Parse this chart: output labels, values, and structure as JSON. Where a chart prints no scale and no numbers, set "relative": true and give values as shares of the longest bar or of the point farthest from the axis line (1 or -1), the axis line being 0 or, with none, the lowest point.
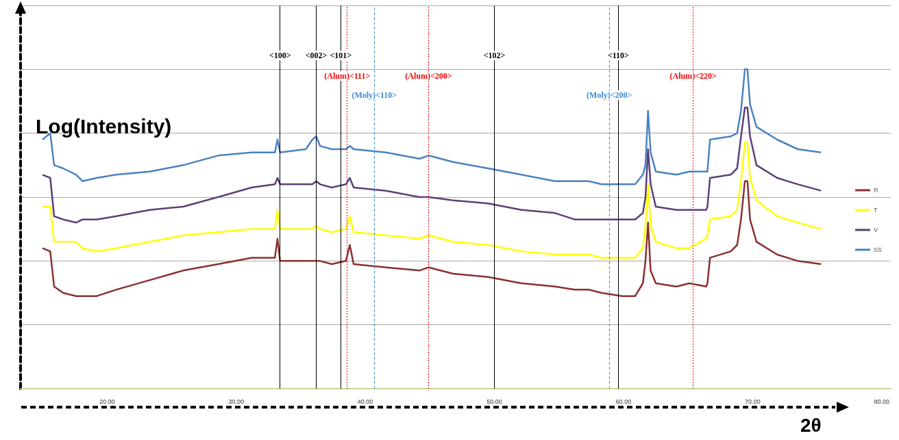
{
  "chart_data": {
    "type": "line",
    "xlabel": "2θ",
    "ylabel": "Log(Intensity)",
    "relative": true,
    "grid": "y",
    "legend": "right",
    "marker": "none",
    "xlim": [
      13.3,
      80.7
    ],
    "xticks": [
      {
        "value": 20,
        "label": "20.00"
      },
      {
        "value": 30,
        "label": "30.00"
      },
      {
        "value": 40,
        "label": "40.00"
      },
      {
        "value": 50,
        "label": "50.00"
      },
      {
        "value": 60,
        "label": "60.00"
      },
      {
        "value": 70,
        "label": "70.00"
      },
      {
        "value": 80,
        "label": "80.00"
      }
    ],
    "x": [
      15.0,
      15.6,
      15.9,
      16.6,
      17.6,
      18.1,
      19.2,
      20.7,
      23.3,
      25.9,
      28.6,
      31.2,
      33.0,
      33.2,
      33.4,
      35.4,
      35.9,
      36.2,
      36.5,
      37.4,
      38.5,
      38.8,
      39.1,
      41.6,
      44.2,
      44.9,
      46.8,
      49.5,
      52.1,
      54.7,
      56.2,
      57.3,
      58.3,
      59.9,
      60.9,
      61.5,
      61.7,
      61.9,
      62.1,
      62.5,
      64.1,
      65.1,
      66.4,
      66.5,
      66.7,
      68.3,
      68.8,
      69.1,
      69.4,
      69.6,
      69.8,
      70.3,
      71.9,
      73.5,
      75.3
    ],
    "annotations": [
      {
        "text": "<100>",
        "x": 33.4
      },
      {
        "text": "<002>",
        "x": 36.2
      },
      {
        "text": "<101>",
        "x": 38.1
      },
      {
        "text": "<102>",
        "x": 50.0
      },
      {
        "text": "<110>",
        "x": 59.6
      }
    ],
    "series": [
      {
        "name": "R",
        "color": "#8b3030",
        "values": [
          0.44,
          0.43,
          0.32,
          0.3,
          0.29,
          0.29,
          0.29,
          0.31,
          0.34,
          0.37,
          0.39,
          0.41,
          0.41,
          0.47,
          0.4,
          0.4,
          0.4,
          0.4,
          0.4,
          0.39,
          0.4,
          0.45,
          0.39,
          0.38,
          0.37,
          0.38,
          0.36,
          0.35,
          0.33,
          0.32,
          0.31,
          0.31,
          0.3,
          0.29,
          0.29,
          0.33,
          0.4,
          0.52,
          0.37,
          0.33,
          0.32,
          0.33,
          0.32,
          0.33,
          0.41,
          0.43,
          0.45,
          0.53,
          0.65,
          0.65,
          0.53,
          0.46,
          0.42,
          0.4,
          0.39
        ]
      },
      {
        "name": "T",
        "color": "#ffff00",
        "values": [
          0.57,
          0.57,
          0.46,
          0.46,
          0.46,
          0.44,
          0.43,
          0.44,
          0.46,
          0.48,
          0.49,
          0.5,
          0.5,
          0.56,
          0.5,
          0.5,
          0.5,
          0.51,
          0.5,
          0.49,
          0.5,
          0.54,
          0.49,
          0.48,
          0.47,
          0.48,
          0.46,
          0.45,
          0.43,
          0.42,
          0.42,
          0.42,
          0.41,
          0.41,
          0.41,
          0.44,
          0.51,
          0.64,
          0.51,
          0.46,
          0.44,
          0.44,
          0.47,
          0.48,
          0.53,
          0.54,
          0.56,
          0.65,
          0.77,
          0.77,
          0.66,
          0.59,
          0.54,
          0.52,
          0.5
        ]
      },
      {
        "name": "V",
        "color": "#5a4078",
        "values": [
          0.67,
          0.66,
          0.54,
          0.53,
          0.52,
          0.53,
          0.53,
          0.54,
          0.56,
          0.57,
          0.6,
          0.63,
          0.64,
          0.66,
          0.64,
          0.64,
          0.64,
          0.65,
          0.64,
          0.63,
          0.64,
          0.66,
          0.63,
          0.62,
          0.6,
          0.6,
          0.59,
          0.58,
          0.56,
          0.55,
          0.53,
          0.53,
          0.53,
          0.53,
          0.53,
          0.55,
          0.6,
          0.75,
          0.64,
          0.57,
          0.56,
          0.56,
          0.56,
          0.57,
          0.66,
          0.67,
          0.69,
          0.79,
          0.88,
          0.88,
          0.79,
          0.7,
          0.66,
          0.64,
          0.62
        ]
      },
      {
        "name": "SS",
        "color": "#4a82c0",
        "values": [
          0.78,
          0.8,
          0.7,
          0.69,
          0.67,
          0.65,
          0.66,
          0.67,
          0.68,
          0.7,
          0.73,
          0.74,
          0.74,
          0.78,
          0.74,
          0.75,
          0.78,
          0.79,
          0.76,
          0.75,
          0.75,
          0.76,
          0.75,
          0.74,
          0.72,
          0.73,
          0.71,
          0.69,
          0.67,
          0.65,
          0.65,
          0.65,
          0.64,
          0.64,
          0.64,
          0.67,
          0.7,
          0.87,
          0.74,
          0.68,
          0.67,
          0.68,
          0.68,
          0.68,
          0.78,
          0.79,
          0.8,
          0.87,
          1.0,
          1.0,
          0.89,
          0.82,
          0.78,
          0.75,
          0.74
        ]
      }
    ],
    "ref_lines": [
      {
        "axis": "x",
        "value": 33.4,
        "color": "#000000",
        "line_style": "solid"
      },
      {
        "axis": "x",
        "value": 36.2,
        "color": "#000000",
        "line_style": "solid"
      },
      {
        "axis": "x",
        "value": 38.1,
        "color": "#000000",
        "line_style": "solid"
      },
      {
        "axis": "x",
        "value": 50.0,
        "color": "#000000",
        "line_style": "solid"
      },
      {
        "axis": "x",
        "value": 59.6,
        "color": "#000000",
        "line_style": "solid"
      },
      {
        "axis": "x",
        "value": 38.6,
        "label": "(Alum)<111>",
        "color": "#ff0000",
        "line_style": "dotted"
      },
      {
        "axis": "x",
        "value": 44.9,
        "label": "(Alum)<200>",
        "color": "#ff0000",
        "line_style": "dotted"
      },
      {
        "axis": "x",
        "value": 65.4,
        "label": "(Alum)<220>",
        "color": "#ff0000",
        "line_style": "dotted"
      },
      {
        "axis": "x",
        "value": 40.7,
        "label": "(Moly)<110>",
        "color": "#3a8ad6",
        "line_style": "dashed"
      },
      {
        "axis": "x",
        "value": 58.9,
        "label": "(Moly)<200>",
        "color": "#3a8ad6",
        "line_style": "dashed"
      }
    ]
  }
}
